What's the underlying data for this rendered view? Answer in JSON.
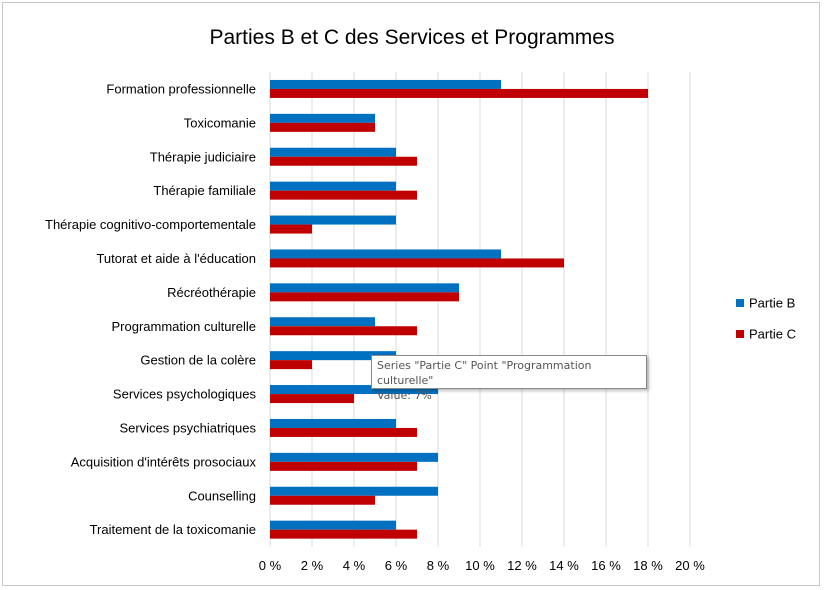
{
  "chart_data": {
    "type": "bar",
    "orientation": "horizontal",
    "title": "Parties B et C des Services et Programmes",
    "categories": [
      "Formation professionnelle",
      "Toxicomanie",
      "Thérapie judiciaire",
      "Thérapie familiale",
      "Thérapie cognitivo-comportementale",
      "Tutorat et aide à l'éducation",
      "Récréothérapie",
      "Programmation culturelle",
      "Gestion de la colère",
      "Services psychologiques",
      "Services psychiatriques",
      "Acquisition d'intérêts prosociaux",
      "Counselling",
      "Traitement de la toxicomanie"
    ],
    "series": [
      {
        "name": "Partie B",
        "color": "#0070c0",
        "values": [
          11,
          5,
          6,
          6,
          6,
          11,
          9,
          5,
          6,
          8,
          6,
          8,
          8,
          6
        ]
      },
      {
        "name": "Partie C",
        "color": "#c00000",
        "values": [
          18,
          5,
          7,
          7,
          2,
          14,
          9,
          7,
          2,
          4,
          7,
          7,
          5,
          7
        ]
      }
    ],
    "x_ticks": [
      "0 %",
      "2 %",
      "4 %",
      "6 %",
      "8 %",
      "10 %",
      "12 %",
      "14 %",
      "16 %",
      "18 %",
      "20 %"
    ],
    "xlim": [
      0,
      20
    ],
    "grid": true,
    "legend_position": "right"
  },
  "tooltip": {
    "line1": "Series \"Partie C\" Point \"Programmation culturelle\"",
    "line2": "Value: 7%"
  }
}
